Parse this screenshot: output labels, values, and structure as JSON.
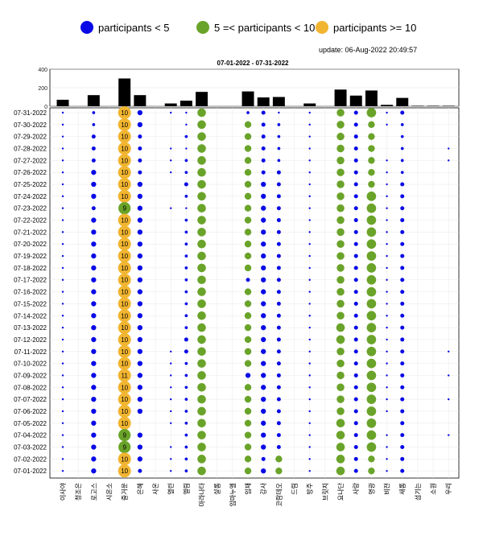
{
  "legend": [
    {
      "label": "participants < 5",
      "color": "#0a0ae6"
    },
    {
      "label": "5 =< participants < 10",
      "color": "#6aa329"
    },
    {
      "label": "participants >= 10",
      "color": "#f1b531"
    }
  ],
  "update_text": "update: 06-Aug-2022 20:49:57",
  "chart_data": {
    "type": "scatter",
    "title": "07-01-2022  - 07-31-2022",
    "colors": {
      "small": "#0a0ae6",
      "medium": "#6aa329",
      "large": "#f1b531"
    },
    "dates": [
      "07-31-2022",
      "07-30-2022",
      "07-29-2022",
      "07-28-2022",
      "07-27-2022",
      "07-26-2022",
      "07-25-2022",
      "07-24-2022",
      "07-23-2022",
      "07-22-2022",
      "07-21-2022",
      "07-20-2022",
      "07-19-2022",
      "07-18-2022",
      "07-17-2022",
      "07-16-2022",
      "07-15-2022",
      "07-14-2022",
      "07-13-2022",
      "07-12-2022",
      "07-11-2022",
      "07-10-2022",
      "07-09-2022",
      "07-08-2022",
      "07-07-2022",
      "07-06-2022",
      "07-05-2022",
      "07-04-2022",
      "07-03-2022",
      "07-02-2022",
      "07-01-2022"
    ],
    "categories": [
      "이사야",
      "청조은",
      "로고스",
      "시온소",
      "즐거운",
      "은혜",
      "사온",
      "열린",
      "엘림",
      "마라나타",
      "샬롬",
      "임마누엘",
      "임재",
      "감사",
      "코람데오",
      "드림",
      "방주",
      "브릿지",
      "요나단",
      "사랑",
      "명광",
      "비전",
      "새롬",
      "섬기는",
      "소원",
      "우리"
    ],
    "column_totals": [
      70,
      0,
      120,
      0,
      300,
      120,
      0,
      30,
      60,
      155,
      0,
      0,
      160,
      95,
      100,
      0,
      30,
      0,
      180,
      115,
      170,
      15,
      90,
      5,
      5,
      5
    ],
    "top_ylim": [
      0,
      400
    ],
    "top_yticks": [
      0,
      200,
      400
    ],
    "labeled_counts": [
      10,
      10,
      10,
      10,
      10,
      10,
      10,
      10,
      9,
      10,
      10,
      10,
      10,
      10,
      10,
      10,
      10,
      10,
      10,
      10,
      10,
      10,
      11,
      10,
      10,
      10,
      10,
      9,
      9,
      10,
      10
    ],
    "series": [
      {
        "name": "이사야",
        "values": [
          1,
          1,
          1,
          1,
          1,
          1,
          1,
          1,
          1,
          1,
          1,
          1,
          1,
          1,
          1,
          1,
          1,
          1,
          1,
          1,
          1,
          1,
          1,
          1,
          1,
          1,
          1,
          1,
          1,
          1,
          1
        ]
      },
      {
        "name": "청조은",
        "values": [
          0,
          0,
          0,
          0,
          0,
          0,
          0,
          0,
          0,
          0,
          0,
          0,
          0,
          0,
          0,
          0,
          0,
          0,
          0,
          0,
          0,
          0,
          0,
          0,
          0,
          0,
          0,
          0,
          0,
          0,
          0
        ]
      },
      {
        "name": "로고스",
        "values": [
          2,
          2,
          3,
          3,
          3,
          4,
          4,
          4,
          3,
          4,
          4,
          4,
          4,
          4,
          4,
          4,
          4,
          4,
          4,
          4,
          4,
          4,
          4,
          4,
          4,
          4,
          4,
          4,
          4,
          4,
          4
        ]
      },
      {
        "name": "시온소",
        "values": [
          0,
          0,
          0,
          0,
          0,
          0,
          0,
          0,
          0,
          0,
          0,
          0,
          0,
          0,
          0,
          0,
          0,
          0,
          0,
          0,
          0,
          0,
          0,
          0,
          0,
          0,
          0,
          0,
          0,
          0,
          0
        ]
      },
      {
        "name": "즐거운",
        "values": [
          10,
          10,
          10,
          10,
          10,
          10,
          10,
          10,
          9,
          10,
          10,
          10,
          10,
          10,
          10,
          10,
          10,
          10,
          10,
          10,
          10,
          10,
          11,
          10,
          10,
          10,
          10,
          9,
          9,
          10,
          10
        ]
      },
      {
        "name": "은혜",
        "values": [
          4,
          4,
          3,
          3,
          3,
          3,
          4,
          4,
          4,
          4,
          4,
          4,
          4,
          4,
          4,
          4,
          4,
          4,
          4,
          4,
          4,
          4,
          4,
          4,
          4,
          4,
          0,
          4,
          4,
          4,
          3
        ]
      },
      {
        "name": "사온",
        "values": [
          0,
          0,
          0,
          0,
          0,
          0,
          0,
          0,
          0,
          0,
          0,
          0,
          0,
          0,
          0,
          0,
          0,
          0,
          0,
          0,
          0,
          0,
          0,
          0,
          0,
          0,
          0,
          0,
          0,
          0,
          0
        ]
      },
      {
        "name": "열린",
        "values": [
          1,
          0,
          0,
          1,
          1,
          1,
          0,
          0,
          1,
          0,
          0,
          0,
          0,
          0,
          0,
          0,
          0,
          0,
          0,
          0,
          1,
          1,
          1,
          1,
          1,
          1,
          1,
          0,
          1,
          1,
          1
        ]
      },
      {
        "name": "엘림",
        "values": [
          1,
          1,
          2,
          1,
          2,
          2,
          3,
          2,
          1,
          2,
          2,
          2,
          2,
          2,
          2,
          2,
          2,
          2,
          2,
          3,
          3,
          2,
          2,
          2,
          2,
          2,
          2,
          2,
          2,
          2,
          2
        ]
      },
      {
        "name": "마라나타",
        "values": [
          7,
          7,
          7,
          7,
          7,
          7,
          7,
          7,
          7,
          7,
          7,
          7,
          7,
          7,
          7,
          7,
          7,
          7,
          7,
          7,
          7,
          7,
          7,
          7,
          7,
          7,
          7,
          7,
          7,
          7,
          7
        ]
      },
      {
        "name": "샬롬",
        "values": [
          0,
          0,
          0,
          0,
          0,
          0,
          0,
          0,
          0,
          0,
          0,
          0,
          0,
          0,
          0,
          0,
          0,
          0,
          0,
          0,
          0,
          0,
          0,
          0,
          0,
          0,
          0,
          0,
          0,
          0,
          0
        ]
      },
      {
        "name": "임마누엘",
        "values": [
          0,
          0,
          0,
          0,
          0,
          0,
          0,
          0,
          0,
          0,
          0,
          0,
          0,
          0,
          0,
          0,
          0,
          0,
          0,
          0,
          0,
          0,
          0,
          0,
          0,
          0,
          0,
          0,
          0,
          0,
          0
        ]
      },
      {
        "name": "임재",
        "values": [
          2,
          5,
          5,
          5,
          5,
          5,
          5,
          5,
          5,
          5,
          5,
          5,
          5,
          5,
          3,
          5,
          5,
          5,
          5,
          5,
          5,
          5,
          4,
          5,
          5,
          5,
          5,
          5,
          5,
          5,
          5
        ]
      },
      {
        "name": "감사",
        "values": [
          3,
          3,
          3,
          3,
          3,
          3,
          4,
          4,
          4,
          4,
          4,
          4,
          4,
          4,
          4,
          4,
          4,
          4,
          4,
          4,
          4,
          4,
          4,
          4,
          4,
          4,
          4,
          4,
          4,
          3,
          4
        ]
      },
      {
        "name": "코람데오",
        "values": [
          1,
          2,
          2,
          2,
          2,
          3,
          3,
          3,
          3,
          3,
          3,
          3,
          3,
          3,
          3,
          3,
          3,
          3,
          3,
          3,
          3,
          3,
          3,
          3,
          3,
          3,
          3,
          3,
          3,
          5,
          5
        ]
      },
      {
        "name": "드림",
        "values": [
          0,
          0,
          0,
          0,
          0,
          0,
          0,
          0,
          0,
          0,
          0,
          0,
          0,
          0,
          0,
          0,
          0,
          0,
          0,
          0,
          0,
          0,
          0,
          0,
          0,
          0,
          0,
          0,
          0,
          0,
          0
        ]
      },
      {
        "name": "방주",
        "values": [
          1,
          1,
          1,
          1,
          1,
          1,
          1,
          1,
          1,
          1,
          1,
          1,
          1,
          1,
          1,
          1,
          1,
          1,
          1,
          1,
          1,
          1,
          1,
          1,
          1,
          1,
          1,
          1,
          1,
          1,
          1
        ]
      },
      {
        "name": "브릿지",
        "values": [
          0,
          0,
          0,
          0,
          0,
          0,
          0,
          0,
          0,
          0,
          0,
          0,
          0,
          0,
          0,
          0,
          0,
          0,
          0,
          0,
          0,
          0,
          0,
          0,
          0,
          0,
          0,
          0,
          0,
          0,
          0
        ]
      },
      {
        "name": "요나단",
        "values": [
          6,
          6,
          6,
          6,
          6,
          6,
          6,
          6,
          6,
          6,
          6,
          6,
          6,
          6,
          6,
          6,
          6,
          6,
          7,
          7,
          6,
          6,
          6,
          6,
          6,
          6,
          7,
          7,
          7,
          7,
          7
        ]
      },
      {
        "name": "사랑",
        "values": [
          3,
          3,
          3,
          3,
          3,
          3,
          3,
          3,
          3,
          3,
          3,
          3,
          3,
          3,
          3,
          3,
          3,
          3,
          3,
          3,
          3,
          3,
          3,
          3,
          3,
          3,
          3,
          3,
          3,
          3,
          3
        ]
      },
      {
        "name": "명광",
        "values": [
          8,
          5,
          5,
          5,
          5,
          5,
          5,
          8,
          8,
          8,
          8,
          8,
          8,
          8,
          8,
          8,
          8,
          8,
          8,
          8,
          8,
          8,
          8,
          8,
          8,
          8,
          8,
          8,
          8,
          5,
          5
        ]
      },
      {
        "name": "비전",
        "values": [
          1,
          1,
          0,
          0,
          1,
          1,
          1,
          1,
          1,
          1,
          1,
          1,
          1,
          1,
          1,
          1,
          1,
          1,
          1,
          1,
          1,
          1,
          1,
          1,
          1,
          1,
          0,
          1,
          1,
          1,
          1
        ]
      },
      {
        "name": "새롬",
        "values": [
          3,
          2,
          2,
          2,
          2,
          2,
          3,
          3,
          3,
          3,
          3,
          3,
          3,
          3,
          3,
          3,
          3,
          3,
          3,
          3,
          3,
          3,
          3,
          3,
          3,
          3,
          3,
          3,
          3,
          3,
          3
        ]
      },
      {
        "name": "섬기는",
        "values": [
          0,
          0,
          0,
          0,
          0,
          0,
          0,
          0,
          0,
          0,
          0,
          0,
          0,
          0,
          0,
          0,
          0,
          0,
          0,
          0,
          0,
          0,
          0,
          0,
          0,
          0,
          0,
          0,
          0,
          0,
          0
        ]
      },
      {
        "name": "소원",
        "values": [
          0,
          0,
          0,
          0,
          0,
          0,
          0,
          0,
          0,
          0,
          0,
          0,
          0,
          0,
          0,
          0,
          0,
          0,
          0,
          0,
          0,
          0,
          0,
          0,
          0,
          0,
          0,
          0,
          0,
          0,
          0
        ]
      },
      {
        "name": "우리",
        "values": [
          0,
          0,
          0,
          1,
          1,
          0,
          0,
          0,
          0,
          0,
          0,
          0,
          0,
          0,
          0,
          0,
          0,
          0,
          0,
          0,
          1,
          0,
          1,
          0,
          1,
          0,
          0,
          1,
          0,
          0,
          0
        ]
      }
    ]
  }
}
